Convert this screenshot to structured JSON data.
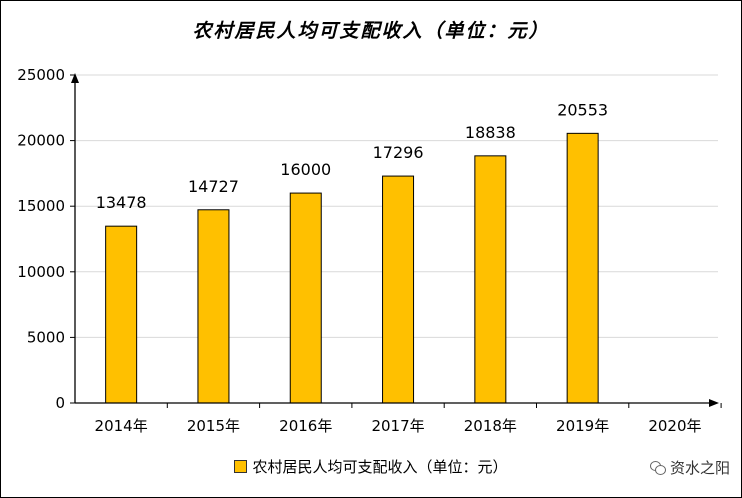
{
  "chart_data": {
    "type": "bar",
    "title": "农村居民人均可支配收入（单位：元）",
    "categories": [
      "2014年",
      "2015年",
      "2016年",
      "2017年",
      "2018年",
      "2019年",
      "2020年"
    ],
    "series": [
      {
        "name": "农村居民人均可支配收入（单位：元）",
        "values": [
          13478,
          14727,
          16000,
          17296,
          18838,
          20553,
          null
        ]
      }
    ],
    "data_labels": [
      "13478",
      "14727",
      "16000",
      "17296",
      "18838",
      "20553",
      ""
    ],
    "ylim": [
      0,
      25000
    ],
    "yticks": [
      0,
      5000,
      10000,
      15000,
      20000,
      25000
    ],
    "ytick_labels": [
      "0",
      "5000",
      "10000",
      "15000",
      "20000",
      "25000"
    ],
    "xlabel": "",
    "ylabel": "",
    "grid": true,
    "legend": "bottom",
    "bar_color": "#FFC000"
  },
  "watermark": {
    "text": "资水之阳",
    "icon": "wechat-icon"
  }
}
